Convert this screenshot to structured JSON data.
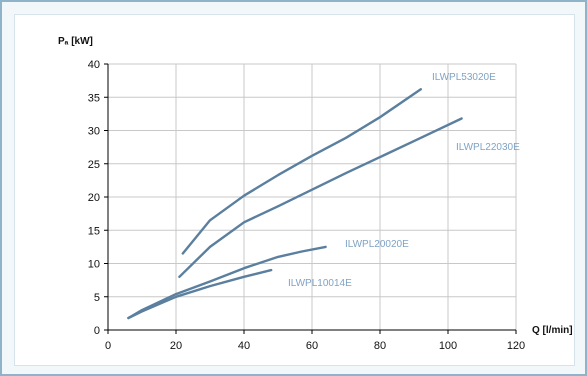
{
  "chart_data": {
    "type": "line",
    "xlabel": "Q [l/min]",
    "ylabel": "Pₐ [kW]",
    "xlim": [
      0,
      120
    ],
    "ylim": [
      0,
      40
    ],
    "x_ticks": [
      0,
      20,
      40,
      60,
      80,
      100,
      120
    ],
    "y_ticks": [
      0,
      5,
      10,
      15,
      20,
      25,
      30,
      35,
      40
    ],
    "grid": true,
    "series": [
      {
        "name": "ILWPL53020E",
        "color": "#5b7f9f",
        "label_color": "#7fa3c4",
        "x": [
          22,
          30,
          40,
          50,
          60,
          70,
          80,
          92
        ],
        "y": [
          11.5,
          16.5,
          20.2,
          23.3,
          26.2,
          28.9,
          32.0,
          36.2
        ]
      },
      {
        "name": "ILWPL22030E",
        "color": "#5b7f9f",
        "label_color": "#7fa3c4",
        "x": [
          21,
          30,
          40,
          50,
          60,
          70,
          80,
          90,
          104
        ],
        "y": [
          8.0,
          12.5,
          16.2,
          18.6,
          21.1,
          23.6,
          26.0,
          28.4,
          31.8
        ]
      },
      {
        "name": "ILWPL20020E",
        "color": "#5b7f9f",
        "label_color": "#7fa3c4",
        "x": [
          6,
          10,
          20,
          30,
          40,
          50,
          57,
          64
        ],
        "y": [
          1.8,
          3.0,
          5.4,
          7.3,
          9.3,
          11.0,
          11.8,
          12.5
        ]
      },
      {
        "name": "ILWPL10014E",
        "color": "#5b7f9f",
        "label_color": "#7fa3c4",
        "x": [
          6,
          10,
          20,
          30,
          40,
          48
        ],
        "y": [
          1.8,
          2.8,
          5.0,
          6.6,
          8.0,
          9.0
        ]
      }
    ]
  }
}
